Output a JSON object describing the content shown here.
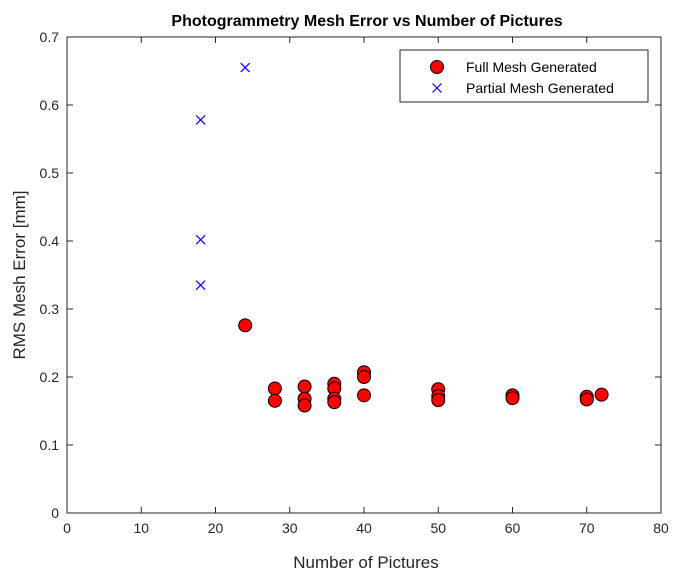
{
  "chart_data": {
    "type": "scatter",
    "title": "Photogrammetry Mesh Error vs Number of Pictures",
    "xlabel": "Number of Pictures",
    "ylabel": "RMS Mesh Error [mm]",
    "xlim": [
      0,
      80
    ],
    "ylim": [
      0,
      0.7
    ],
    "xticks": [
      "0",
      "10",
      "20",
      "30",
      "40",
      "50",
      "60",
      "70",
      "80"
    ],
    "yticks": [
      "0",
      "0.1",
      "0.2",
      "0.3",
      "0.4",
      "0.5",
      "0.6",
      "0.7"
    ],
    "grid": false,
    "legend_position": "top-right",
    "series": [
      {
        "name": "Full Mesh Generated",
        "marker": "circle",
        "color": "#ff0000",
        "edge_color": "#000000",
        "points": [
          {
            "x": 24,
            "y": 0.276
          },
          {
            "x": 28,
            "y": 0.183
          },
          {
            "x": 28,
            "y": 0.165
          },
          {
            "x": 32,
            "y": 0.186
          },
          {
            "x": 32,
            "y": 0.168
          },
          {
            "x": 32,
            "y": 0.158
          },
          {
            "x": 36,
            "y": 0.19
          },
          {
            "x": 36,
            "y": 0.183
          },
          {
            "x": 36,
            "y": 0.168
          },
          {
            "x": 36,
            "y": 0.163
          },
          {
            "x": 40,
            "y": 0.207
          },
          {
            "x": 40,
            "y": 0.2
          },
          {
            "x": 40,
            "y": 0.173
          },
          {
            "x": 50,
            "y": 0.182
          },
          {
            "x": 50,
            "y": 0.172
          },
          {
            "x": 50,
            "y": 0.166
          },
          {
            "x": 60,
            "y": 0.173
          },
          {
            "x": 60,
            "y": 0.169
          },
          {
            "x": 70,
            "y": 0.171
          },
          {
            "x": 70,
            "y": 0.167
          },
          {
            "x": 72,
            "y": 0.174
          }
        ]
      },
      {
        "name": "Partial Mesh Generated",
        "marker": "x",
        "color": "#0000ff",
        "points": [
          {
            "x": 18,
            "y": 0.578
          },
          {
            "x": 18,
            "y": 0.402
          },
          {
            "x": 18,
            "y": 0.335
          },
          {
            "x": 24,
            "y": 0.655
          }
        ]
      }
    ]
  }
}
